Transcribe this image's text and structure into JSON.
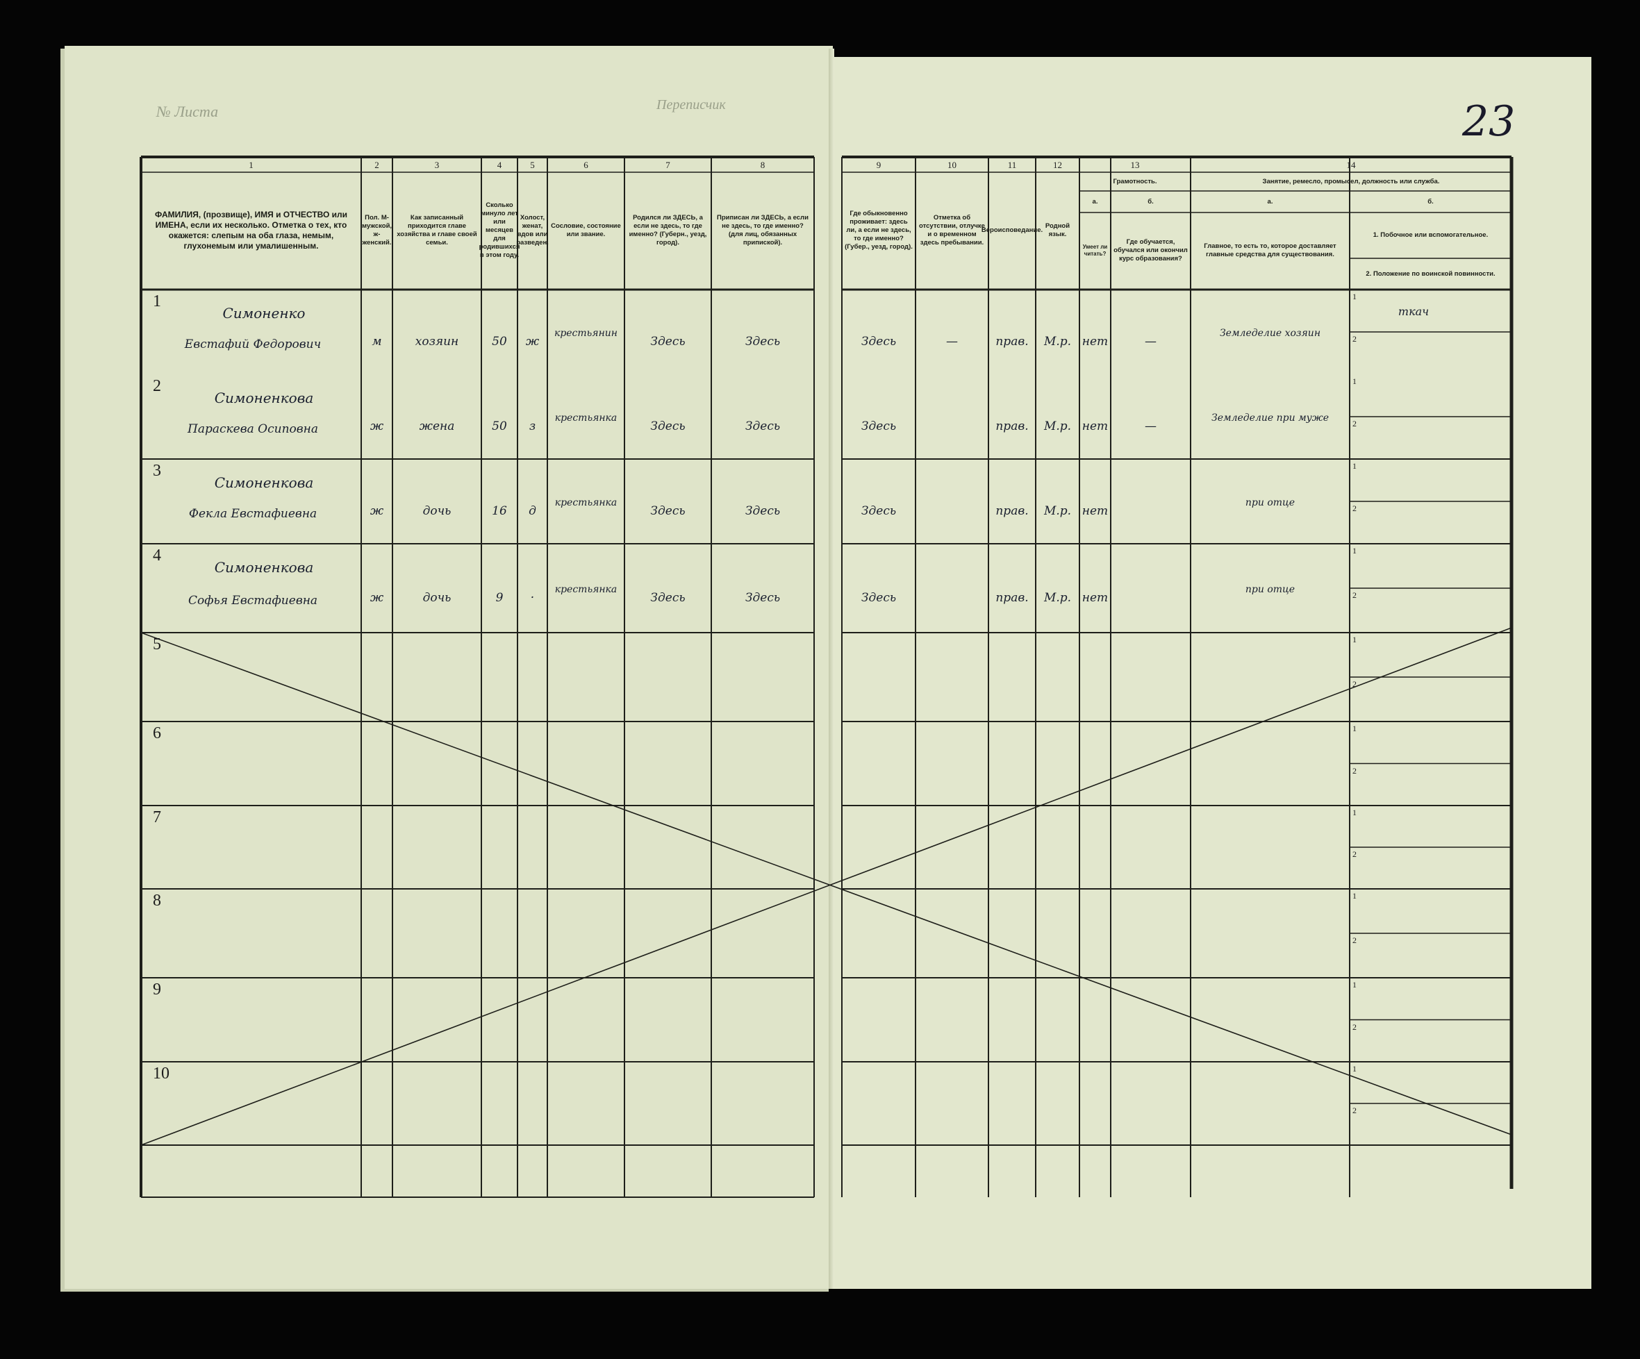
{
  "sheet": {
    "sheet_label": "№ Листа",
    "enumerator_label": "Переписчик",
    "page_number": "23"
  },
  "header": {
    "column_numbers": [
      "1",
      "2",
      "3",
      "4",
      "5",
      "6",
      "7",
      "8",
      "9",
      "10",
      "11",
      "12",
      "13",
      "14"
    ],
    "columns": {
      "c1": "ФАМИЛИЯ, (прозвище), ИМЯ и ОТЧЕСТВО или ИМЕНА, если их несколько. Отметка о тех, кто окажется: слепым на оба глаза, немым, глухонемым или умалишенным.",
      "c2": "Пол. М-мужской, ж-женский.",
      "c3": "Как записанный приходится главе хозяйства и главе своей семьи.",
      "c4": "Сколько минуло лет или месяцев для родившихся в этом году.",
      "c5": "Холост, женат, вдов или разведен.",
      "c6": "Сословие, состояние или звание.",
      "c7": "Родился ли ЗДЕСЬ, а если не здесь, то где именно? (Губерн., уезд, город).",
      "c8": "Приписан ли ЗДЕСЬ, а если не здесь, то где именно? (для лиц, обязанных припиской).",
      "c9": "Где обыкновенно проживает: здесь ли, а если не здесь, то где именно? (Губер., уезд, город).",
      "c10": "Отметка об отсутствии, отлучке и о временном здесь пребывании.",
      "c11": "Вероисповедание.",
      "c12": "Родной язык.",
      "c13_group": "Грамотность.",
      "c13a_letter": "а.",
      "c13b_letter": "б.",
      "c13a": "Умеет ли читать?",
      "c13b": "Где обучается, обучался или окончил курс образования?",
      "c14_group": "Занятие, ремесло, промысел, должность или служба.",
      "c14a_letter": "а.",
      "c14b_letter": "б.",
      "c14a": "Главное, то есть то, которое доставляет главные средства для существования.",
      "c14b1": "1. Побочное или вспомогательное.",
      "c14b2": "2. Положение по воинской повинности."
    }
  },
  "row_numbers": [
    "1",
    "2",
    "3",
    "4",
    "5",
    "6",
    "7",
    "8",
    "9",
    "10"
  ],
  "sub_labels": [
    "1",
    "2"
  ],
  "rows": [
    {
      "surname": "Симоненко",
      "given": "Евстафий Федорович",
      "sex": "м",
      "relation": "хозяин",
      "age": "50",
      "marital": "ж",
      "estate": "крестьянин",
      "born": "Здесь",
      "registered": "Здесь",
      "resides": "Здесь",
      "absence": "—",
      "religion": "прав.",
      "language": "М.р.",
      "reads": "нет",
      "education": "—",
      "occupation": "Земледелие хозяин",
      "secondary": "ткач",
      "military": ""
    },
    {
      "surname": "Симоненкова",
      "given": "Параскева Осиповна",
      "sex": "ж",
      "relation": "жена",
      "age": "50",
      "marital": "з",
      "estate": "крестьянка",
      "born": "Здесь",
      "registered": "Здесь",
      "resides": "Здесь",
      "absence": "",
      "religion": "прав.",
      "language": "М.р.",
      "reads": "нет",
      "education": "—",
      "occupation": "Земледелие при муже",
      "secondary": "",
      "military": ""
    },
    {
      "surname": "Симоненкова",
      "given": "Фекла Евстафиевна",
      "sex": "ж",
      "relation": "дочь",
      "age": "16",
      "marital": "д",
      "estate": "крестьянка",
      "born": "Здесь",
      "registered": "Здесь",
      "resides": "Здесь",
      "absence": "",
      "religion": "прав.",
      "language": "М.р.",
      "reads": "нет",
      "education": "",
      "occupation": "при отце",
      "secondary": "",
      "military": ""
    },
    {
      "surname": "Симоненкова",
      "given": "Софья Евстафиевна",
      "sex": "ж",
      "relation": "дочь",
      "age": "9",
      "marital": "·",
      "estate": "крестьянка",
      "born": "Здесь",
      "registered": "Здесь",
      "resides": "Здесь",
      "absence": "",
      "religion": "прав.",
      "language": "М.р.",
      "reads": "нет",
      "education": "",
      "occupation": "при отце",
      "secondary": "",
      "military": ""
    }
  ],
  "colors": {
    "paper": "#dfe4c9",
    "ink": "#1a1f2e",
    "background": "#050505"
  }
}
